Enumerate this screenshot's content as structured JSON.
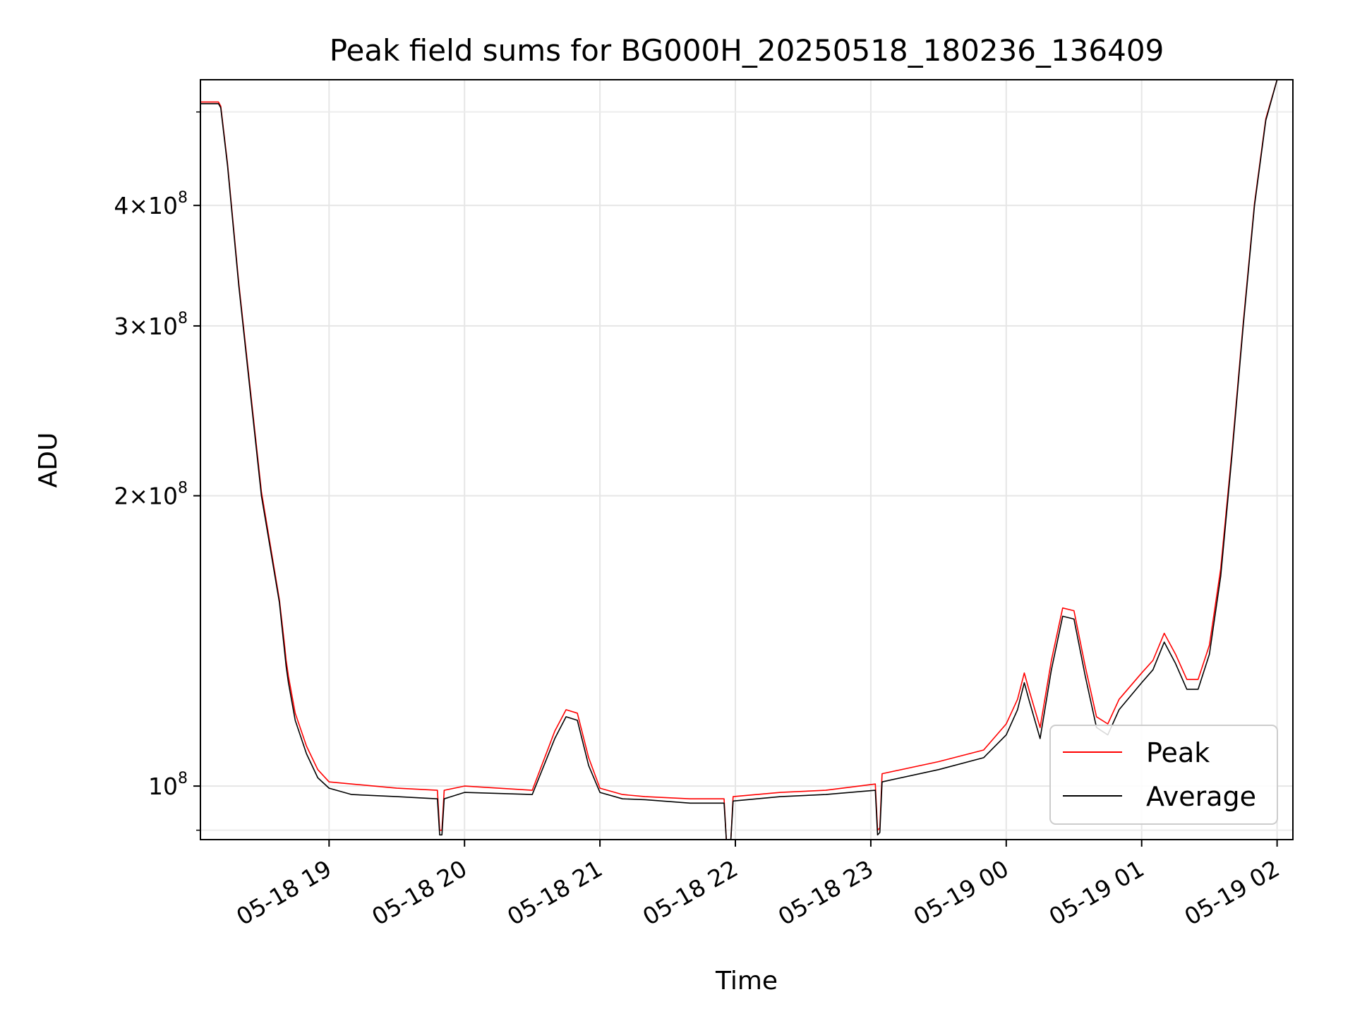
{
  "chart_data": {
    "type": "line",
    "title": "Peak field sums for BG000H_20250518_180236_136409",
    "xlabel": "Time",
    "ylabel": "ADU",
    "yscale": "log",
    "ylim": [
      88000000,
      540000000
    ],
    "xlim": [
      "05-18 18:03",
      "05-19 02:07"
    ],
    "grid": true,
    "legend": {
      "position": "lower-right",
      "entries": [
        "Peak",
        "Average"
      ]
    },
    "x_ticks": [
      "05-18 19",
      "05-18 20",
      "05-18 21",
      "05-18 22",
      "05-18 23",
      "05-19 00",
      "05-19 01",
      "05-19 02"
    ],
    "y_ticks": [
      {
        "value": 100000000,
        "mantissa": "",
        "exp": "8"
      },
      {
        "value": 200000000,
        "mantissa": "2",
        "exp": "8"
      },
      {
        "value": 300000000,
        "mantissa": "3",
        "exp": "8"
      },
      {
        "value": 400000000,
        "mantissa": "4",
        "exp": "8"
      }
    ],
    "series": [
      {
        "name": "Average",
        "color": "#000000",
        "x": [
          "05-18 18:03",
          "05-18 18:11",
          "05-18 18:12",
          "05-18 18:15",
          "05-18 18:20",
          "05-18 18:30",
          "05-18 18:38",
          "05-18 18:40",
          "05-18 18:41",
          "05-18 18:42",
          "05-18 18:45",
          "05-18 18:50",
          "05-18 18:55",
          "05-18 19:00",
          "05-18 19:10",
          "05-18 19:30",
          "05-18 19:48",
          "05-18 19:49",
          "05-18 19:50",
          "05-18 19:51",
          "05-18 20:00",
          "05-18 20:30",
          "05-18 20:40",
          "05-18 20:45",
          "05-18 20:50",
          "05-18 20:55",
          "05-18 21:00",
          "05-18 21:10",
          "05-18 21:20",
          "05-18 21:40",
          "05-18 21:55",
          "05-18 21:56",
          "05-18 21:58",
          "05-18 21:59",
          "05-18 22:20",
          "05-18 22:40",
          "05-18 23:02",
          "05-18 23:03",
          "05-18 23:04",
          "05-18 23:05",
          "05-18 23:30",
          "05-18 23:50",
          "05-19 00:00",
          "05-19 00:05",
          "05-19 00:08",
          "05-19 00:10",
          "05-19 00:15",
          "05-19 00:20",
          "05-19 00:25",
          "05-19 00:30",
          "05-19 00:35",
          "05-19 00:40",
          "05-19 00:45",
          "05-19 00:50",
          "05-19 01:00",
          "05-19 01:05",
          "05-19 01:10",
          "05-19 01:15",
          "05-19 01:20",
          "05-19 01:25",
          "05-19 01:30",
          "05-19 01:35",
          "05-19 01:40",
          "05-19 01:45",
          "05-19 01:50",
          "05-19 01:55",
          "05-19 02:00",
          "05-19 02:02",
          "05-19 02:07"
        ],
        "values": [
          510000000,
          510000000,
          505000000,
          440000000,
          330000000,
          200000000,
          155000000,
          140000000,
          133000000,
          128000000,
          117000000,
          108000000,
          102000000,
          99500000,
          98000000,
          97500000,
          97000000,
          89000000,
          89000000,
          97000000,
          98500000,
          98000000,
          112000000,
          118000000,
          117000000,
          105000000,
          98500000,
          97000000,
          96800000,
          96000000,
          96000000,
          88000000,
          88000000,
          96500000,
          97500000,
          98000000,
          99000000,
          89000000,
          89500000,
          101000000,
          104000000,
          107000000,
          113000000,
          120000000,
          128000000,
          123000000,
          112000000,
          132000000,
          150000000,
          149000000,
          130000000,
          115000000,
          113000000,
          120000000,
          128000000,
          132000000,
          141000000,
          134000000,
          126000000,
          126000000,
          137000000,
          165000000,
          220000000,
          300000000,
          400000000,
          490000000,
          540000000,
          540000000,
          540000000
        ]
      },
      {
        "name": "Peak",
        "color": "#ff0000",
        "x": [
          "05-18 18:03",
          "05-18 18:11",
          "05-18 18:12",
          "05-18 18:15",
          "05-18 18:20",
          "05-18 18:30",
          "05-18 18:38",
          "05-18 18:40",
          "05-18 18:41",
          "05-18 18:42",
          "05-18 18:45",
          "05-18 18:50",
          "05-18 18:55",
          "05-18 19:00",
          "05-18 19:10",
          "05-18 19:30",
          "05-18 19:48",
          "05-18 19:49",
          "05-18 19:50",
          "05-18 19:51",
          "05-18 20:00",
          "05-18 20:30",
          "05-18 20:40",
          "05-18 20:45",
          "05-18 20:50",
          "05-18 20:55",
          "05-18 21:00",
          "05-18 21:10",
          "05-18 21:20",
          "05-18 21:40",
          "05-18 21:55",
          "05-18 21:56",
          "05-18 21:58",
          "05-18 21:59",
          "05-18 22:20",
          "05-18 22:40",
          "05-18 23:02",
          "05-18 23:03",
          "05-18 23:04",
          "05-18 23:05",
          "05-18 23:30",
          "05-18 23:50",
          "05-19 00:00",
          "05-19 00:05",
          "05-19 00:08",
          "05-19 00:10",
          "05-19 00:15",
          "05-19 00:20",
          "05-19 00:25",
          "05-19 00:30",
          "05-19 00:35",
          "05-19 00:40",
          "05-19 00:45",
          "05-19 00:50",
          "05-19 01:00",
          "05-19 01:05",
          "05-19 01:10",
          "05-19 01:15",
          "05-19 01:20",
          "05-19 01:25",
          "05-19 01:30",
          "05-19 01:35",
          "05-19 01:40",
          "05-19 01:45",
          "05-19 01:50",
          "05-19 01:55",
          "05-19 02:00",
          "05-19 02:02",
          "05-19 02:07"
        ],
        "values": [
          512000000,
          512000000,
          507000000,
          442000000,
          332000000,
          202000000,
          156000000,
          142000000,
          135000000,
          130000000,
          119000000,
          110000000,
          104000000,
          101000000,
          100500000,
          99500000,
          99000000,
          90000000,
          90000000,
          99000000,
          100000000,
          99000000,
          114000000,
          120000000,
          119000000,
          107000000,
          99500000,
          98000000,
          97500000,
          97000000,
          97000000,
          88000000,
          88000000,
          97500000,
          98500000,
          99000000,
          100500000,
          90000000,
          90500000,
          103000000,
          106000000,
          109000000,
          116000000,
          123000000,
          131000000,
          126000000,
          115000000,
          135000000,
          153000000,
          152000000,
          133000000,
          118000000,
          116000000,
          123000000,
          131000000,
          135000000,
          144000000,
          137000000,
          129000000,
          129000000,
          140000000,
          168000000,
          222000000,
          302000000,
          402000000,
          492000000,
          540000000,
          540000000,
          540000000
        ]
      }
    ]
  }
}
